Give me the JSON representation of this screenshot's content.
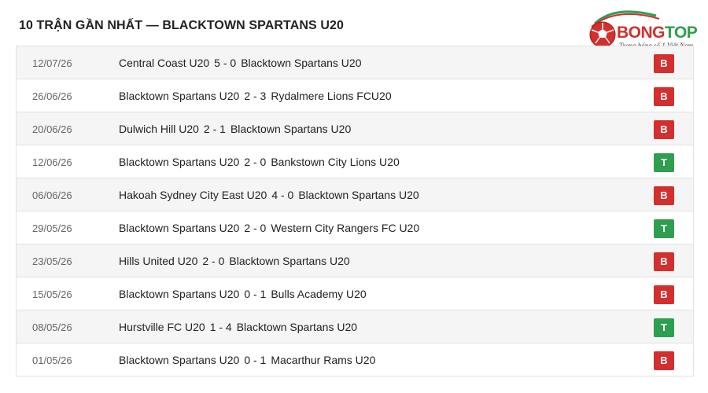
{
  "header": {
    "title": "10 TRẬN GẦN NHẤT — BLACKTOWN SPARTANS U20"
  },
  "logo": {
    "brand_part1": "BONG",
    "brand_part2": "TOP",
    "tagline": "Trang bóng số 1 Việt Nam",
    "colors": {
      "red": "#d32f2f",
      "green": "#2e9e4f"
    }
  },
  "result_colors": {
    "B": "#d32f2f",
    "T": "#2e9e4f"
  },
  "matches": [
    {
      "date": "12/07/26",
      "home": "Central Coast U20",
      "score": "5 - 0",
      "away": "Blacktown Spartans U20",
      "result": "B"
    },
    {
      "date": "26/06/26",
      "home": "Blacktown Spartans U20",
      "score": "2 - 3",
      "away": "Rydalmere Lions FCU20",
      "result": "B"
    },
    {
      "date": "20/06/26",
      "home": "Dulwich Hill U20",
      "score": "2 - 1",
      "away": "Blacktown Spartans U20",
      "result": "B"
    },
    {
      "date": "12/06/26",
      "home": "Blacktown Spartans U20",
      "score": "2 - 0",
      "away": "Bankstown City Lions U20",
      "result": "T"
    },
    {
      "date": "06/06/26",
      "home": "Hakoah Sydney City East U20",
      "score": "4 - 0",
      "away": "Blacktown Spartans U20",
      "result": "B"
    },
    {
      "date": "29/05/26",
      "home": "Blacktown Spartans U20",
      "score": "2 - 0",
      "away": "Western City Rangers FC U20",
      "result": "T"
    },
    {
      "date": "23/05/26",
      "home": "Hills United U20",
      "score": "2 - 0",
      "away": "Blacktown Spartans U20",
      "result": "B"
    },
    {
      "date": "15/05/26",
      "home": "Blacktown Spartans U20",
      "score": "0 - 1",
      "away": "Bulls Academy U20",
      "result": "B"
    },
    {
      "date": "08/05/26",
      "home": "Hurstville FC U20",
      "score": "1 - 4",
      "away": "Blacktown Spartans U20",
      "result": "T"
    },
    {
      "date": "01/05/26",
      "home": "Blacktown Spartans U20",
      "score": "0 - 1",
      "away": "Macarthur Rams U20",
      "result": "B"
    }
  ]
}
